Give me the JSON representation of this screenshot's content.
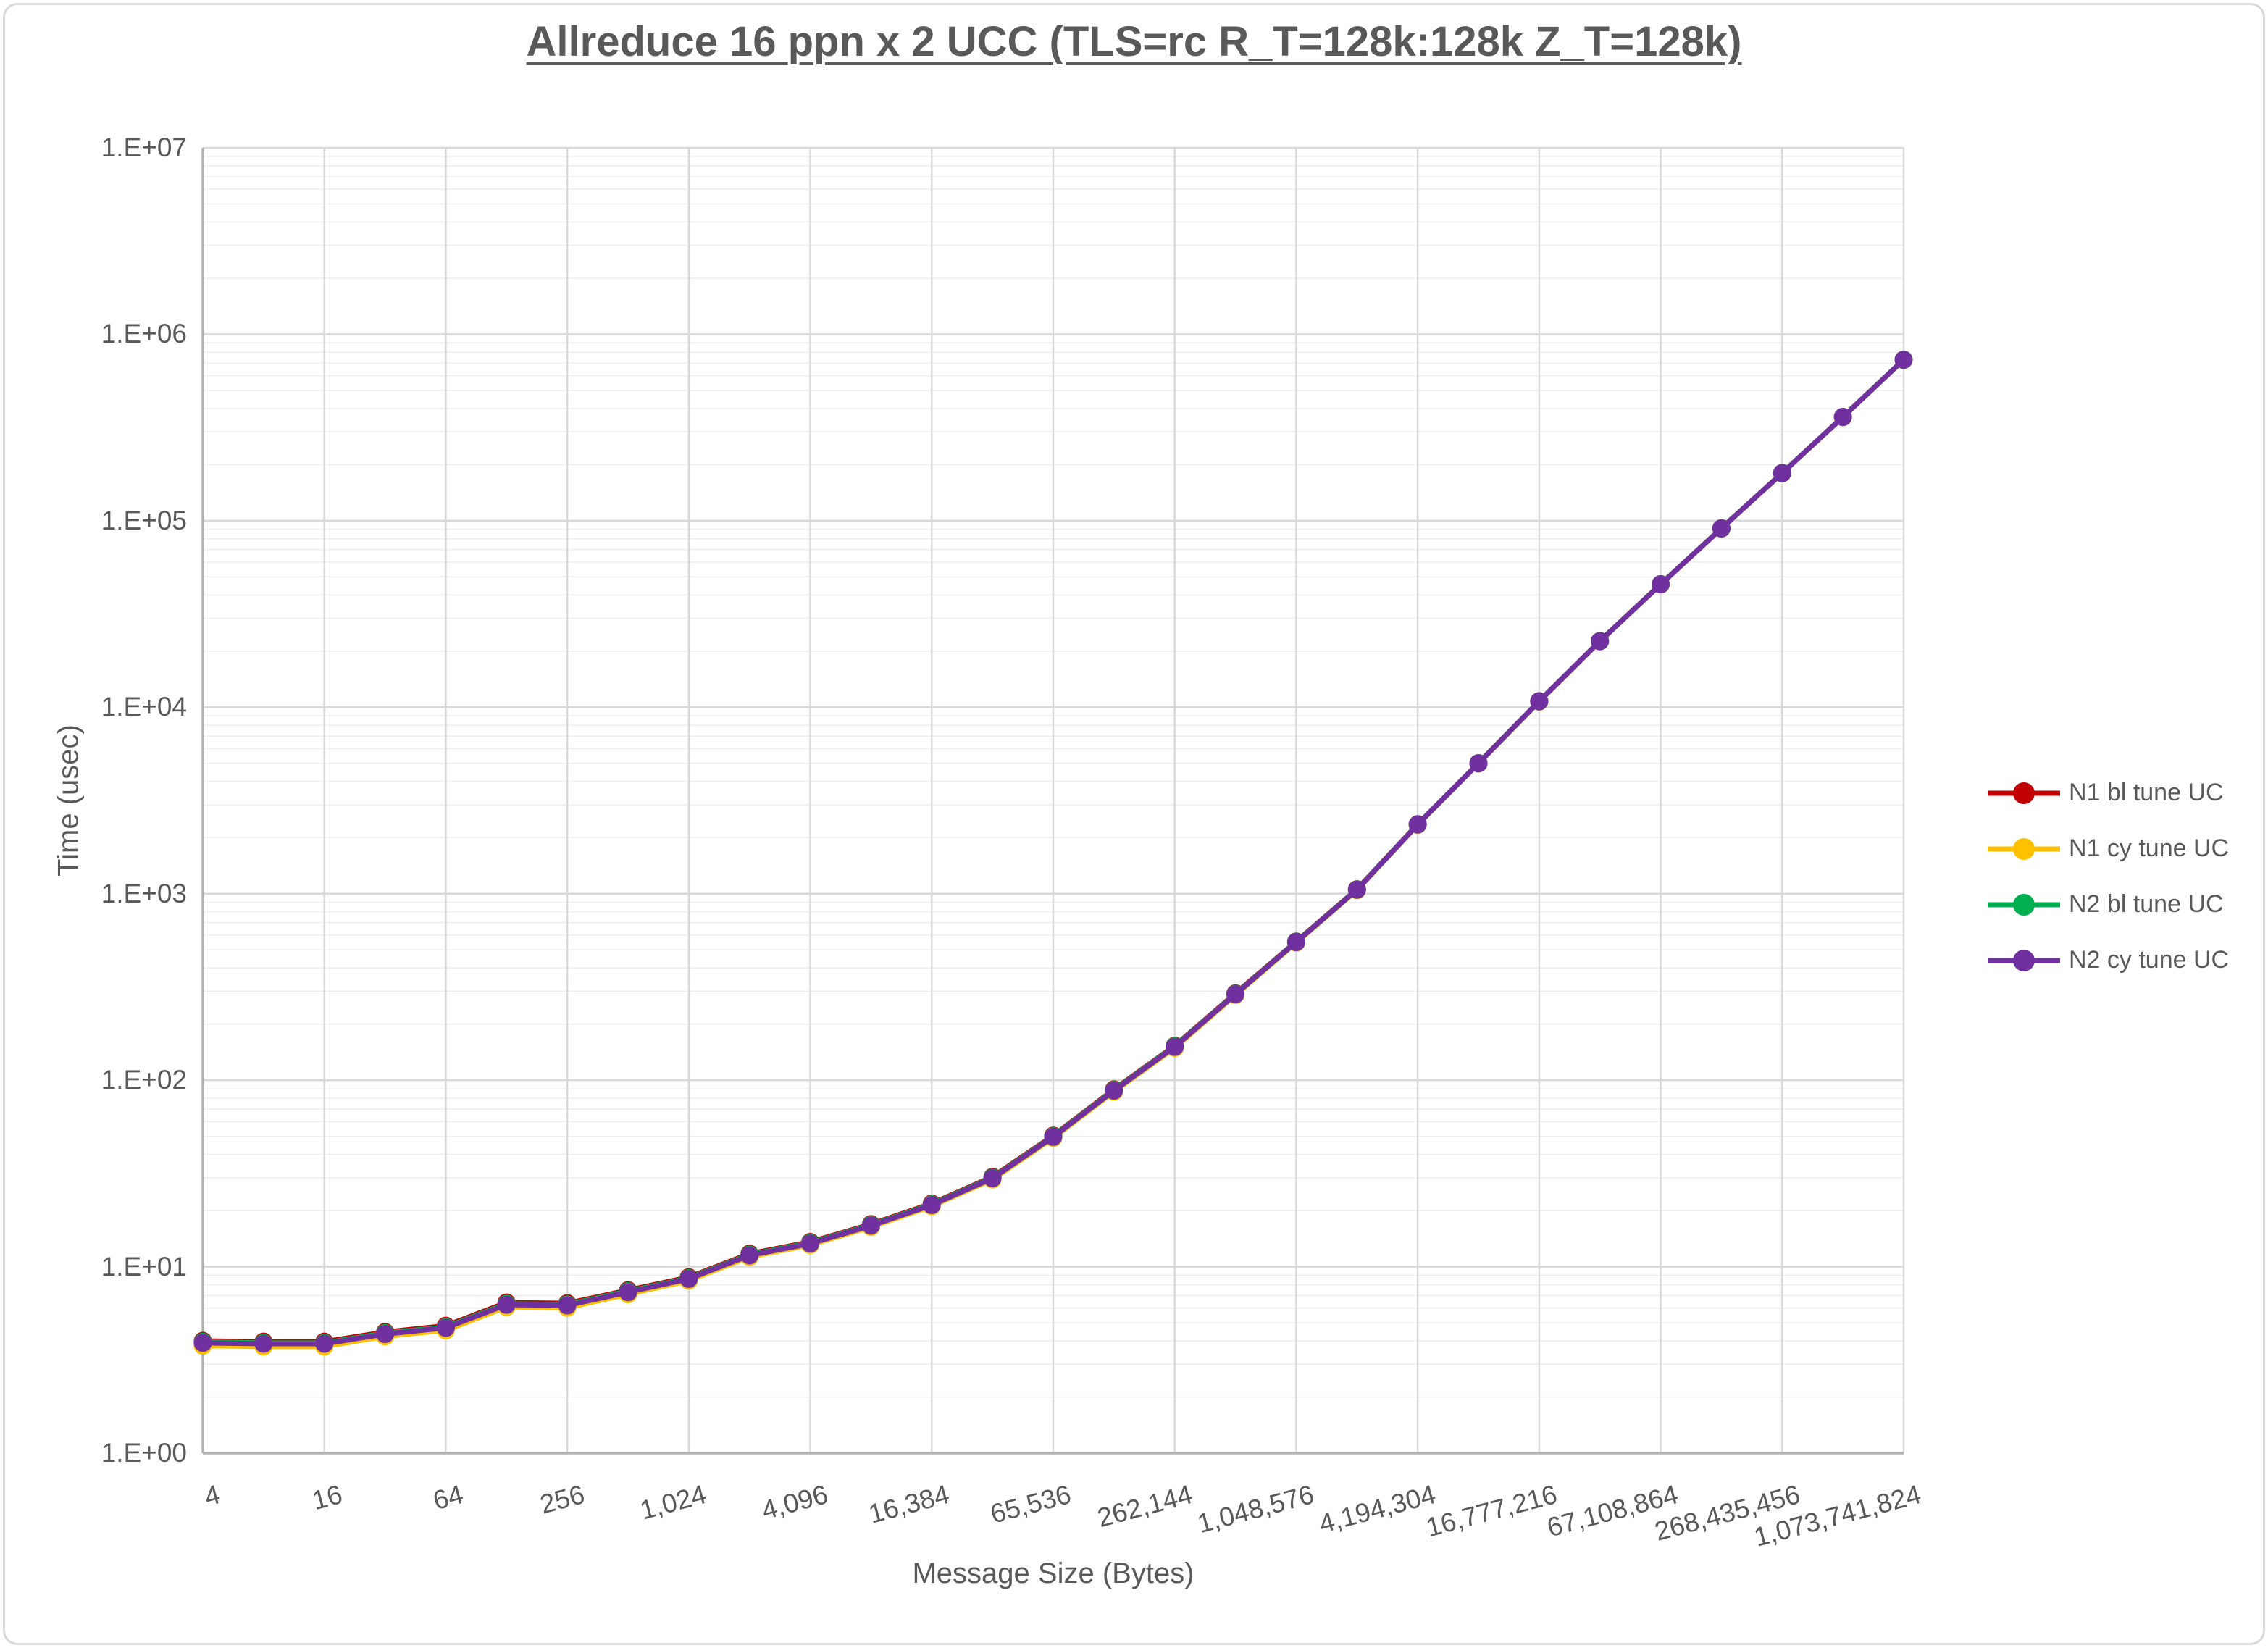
{
  "chart": {
    "title": "Allreduce 16 ppn x 2 UCC (TLS=rc R_T=128k:128k Z_T=128k)",
    "x_axis_title": "Message Size (Bytes)",
    "y_axis_title": "Time (usec)"
  },
  "colors": {
    "text": "#595959",
    "axis_line": "#b3b3b3",
    "major_gridline": "#d9d9d9",
    "minor_gridline": "#efefef",
    "background": "#ffffff",
    "border": "#d9d9d9"
  },
  "chart_data": {
    "type": "line",
    "x_scale": "log2",
    "y_scale": "log10",
    "ylim": [
      1,
      10000000
    ],
    "grid": "major-and-minor",
    "legend_position": "right",
    "y_tick_labels": [
      "1.E+00",
      "1.E+01",
      "1.E+02",
      "1.E+03",
      "1.E+04",
      "1.E+05",
      "1.E+06",
      "1.E+07"
    ],
    "x_tick_labels": [
      "4",
      "16",
      "64",
      "256",
      "1,024",
      "4,096",
      "16,384",
      "65,536",
      "262,144",
      "1,048,576",
      "4,194,304",
      "16,777,216",
      "67,108,864",
      "268,435,456",
      "1,073,741,824"
    ],
    "x": [
      4,
      8,
      16,
      32,
      64,
      128,
      256,
      512,
      1024,
      2048,
      4096,
      8192,
      16384,
      32768,
      65536,
      131072,
      262144,
      524288,
      1048576,
      2097152,
      4194304,
      8388608,
      16777216,
      33554432,
      67108864,
      134217728,
      268435456,
      536870912,
      1073741824
    ],
    "series": [
      {
        "name": "N1 bl tune UC",
        "color": "#C00000",
        "values": [
          4.0,
          3.96,
          3.96,
          4.46,
          4.82,
          6.42,
          6.36,
          7.47,
          8.78,
          11.73,
          13.56,
          16.9,
          21.8,
          30.3,
          50.4,
          89.2,
          153,
          292,
          554,
          1056,
          2358,
          5012,
          10780,
          22650,
          45680,
          91120,
          180200,
          360400,
          730700
        ]
      },
      {
        "name": "N1 cy tune UC",
        "color": "#FFC000",
        "values": [
          3.77,
          3.73,
          3.73,
          4.23,
          4.56,
          6.08,
          6.03,
          7.12,
          8.42,
          11.28,
          13.08,
          16.33,
          21.1,
          29.35,
          49.0,
          86.8,
          149,
          286,
          546,
          1044,
          2342,
          4988,
          10720,
          22550,
          45520,
          90880,
          179800,
          359600,
          729300
        ]
      },
      {
        "name": "N2 bl tune UC",
        "color": "#00B050",
        "values": [
          3.95,
          3.9,
          3.9,
          4.4,
          4.75,
          6.32,
          6.27,
          7.38,
          8.67,
          11.6,
          13.42,
          16.75,
          21.6,
          30.0,
          50.0,
          88.5,
          152,
          290,
          552,
          1052,
          2354,
          5006,
          10760,
          22620,
          45640,
          91060,
          180100,
          360200,
          730400
        ]
      },
      {
        "name": "N2 cy tune UC",
        "color": "#7030A0",
        "values": [
          3.9,
          3.86,
          3.86,
          4.35,
          4.7,
          6.25,
          6.2,
          7.3,
          8.6,
          11.5,
          13.3,
          16.6,
          21.4,
          29.8,
          49.7,
          87.9,
          151,
          289,
          550,
          1050,
          2350,
          5000,
          10750,
          22600,
          45600,
          91000,
          180000,
          360000,
          730000
        ]
      }
    ]
  }
}
